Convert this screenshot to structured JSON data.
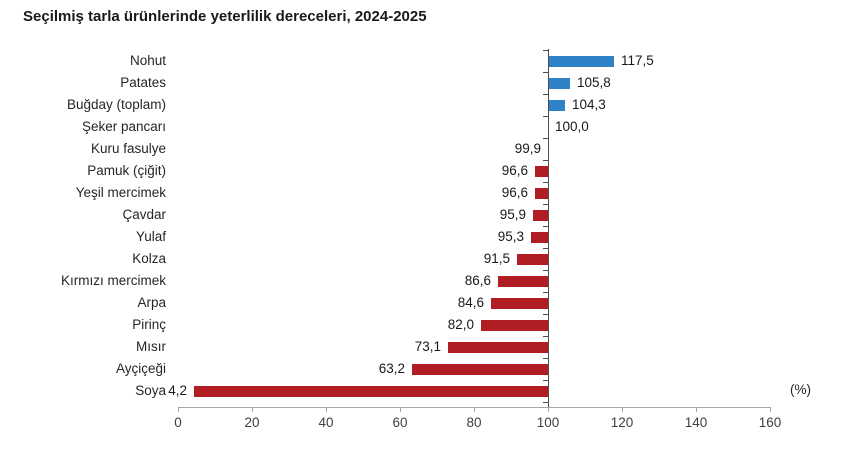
{
  "title": "Seçilmiş tarla ürünlerinde yeterlilik dereceleri, 2024-2025",
  "chart_data": {
    "type": "bar",
    "orientation": "horizontal",
    "baseline": 100,
    "categories": [
      "Nohut",
      "Patates",
      "Buğday (toplam)",
      "Şeker pancarı",
      "Kuru fasulye",
      "Pamuk (çiğit)",
      "Yeşil mercimek",
      "Çavdar",
      "Yulaf",
      "Kolza",
      "Kırmızı mercimek",
      "Arpa",
      "Pirinç",
      "Mısır",
      "Ayçiçeği",
      "Soya"
    ],
    "values": [
      117.5,
      105.8,
      104.3,
      100.0,
      99.9,
      96.6,
      96.6,
      95.9,
      95.3,
      91.5,
      86.6,
      84.6,
      82.0,
      73.1,
      63.2,
      4.2
    ],
    "value_labels": [
      "117,5",
      "105,8",
      "104,3",
      "100,0",
      "99,9",
      "96,6",
      "96,6",
      "95,9",
      "95,3",
      "91,5",
      "86,6",
      "84,6",
      "82,0",
      "73,1",
      "63,2",
      "4,2"
    ],
    "xlim": [
      0,
      160
    ],
    "xticks": [
      0,
      20,
      40,
      60,
      80,
      100,
      120,
      140,
      160
    ],
    "xtick_labels": [
      "0",
      "20",
      "40",
      "60",
      "80",
      "100",
      "120",
      "140",
      "160"
    ],
    "unit_label": "(%)",
    "grid": false,
    "legend": false,
    "colors": {
      "above_baseline": "#2e82c5",
      "below_baseline": "#b01e24",
      "axis": "#a6a6a6",
      "baseline_axis": "#4d4d4d"
    }
  }
}
